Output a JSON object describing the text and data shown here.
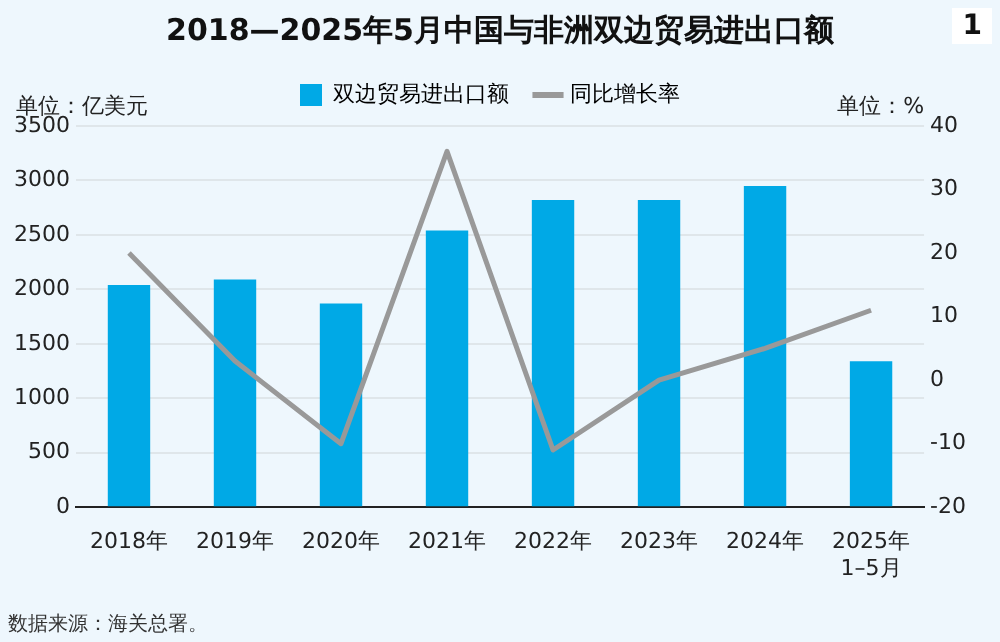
{
  "chart_data": {
    "type": "bar",
    "title": "2018—2025年5月中国与非洲双边贸易进出口额",
    "ylabel": "单位：亿美元",
    "y2label": "单位：%",
    "categories": [
      "2018年",
      "2019年",
      "2020年",
      "2021年",
      "2022年",
      "2023年",
      "2024年",
      "2025年\n1–5月"
    ],
    "series": [
      {
        "name": "双边贸易进出口额",
        "color": "#00a9e6",
        "values": [
          2040,
          2090,
          1870,
          2540,
          2820,
          2820,
          2950,
          1340
        ]
      },
      {
        "name": "同比增长率",
        "type": "line",
        "axis": "y2",
        "color": "#999999",
        "values": [
          20,
          3,
          -10,
          36,
          -11,
          0,
          5,
          11
        ]
      }
    ],
    "ylim": [
      0,
      3500
    ],
    "yticks": [
      0,
      500,
      1000,
      1500,
      2000,
      2500,
      3000,
      3500
    ],
    "y2lim": [
      -20,
      40
    ],
    "y2ticks": [
      -20,
      -10,
      0,
      10,
      20,
      30,
      40
    ],
    "grid": "y",
    "legend": "top",
    "marker": "none",
    "line_style": "solid",
    "annotations": [
      "1",
      "数据来源：海关总署。"
    ]
  }
}
